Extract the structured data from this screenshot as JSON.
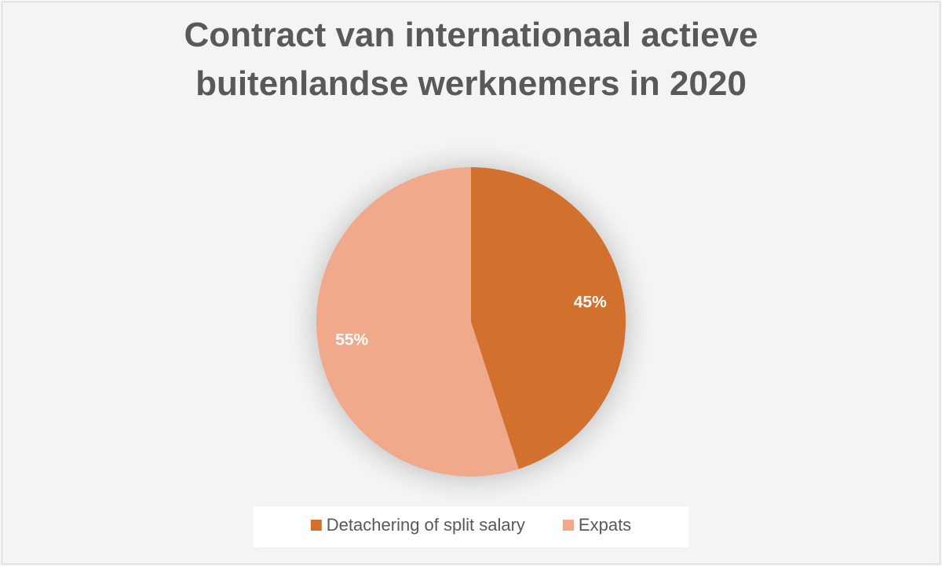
{
  "chart_data": {
    "type": "pie",
    "title": "Contract van internationaal actieve buitenlandse werknemers in 2020",
    "categories": [
      "Detachering of split salary",
      "Expats"
    ],
    "values": [
      45,
      55
    ],
    "value_labels": [
      "45%",
      "55%"
    ],
    "colors": [
      "#d2702e",
      "#f0a98a"
    ]
  }
}
